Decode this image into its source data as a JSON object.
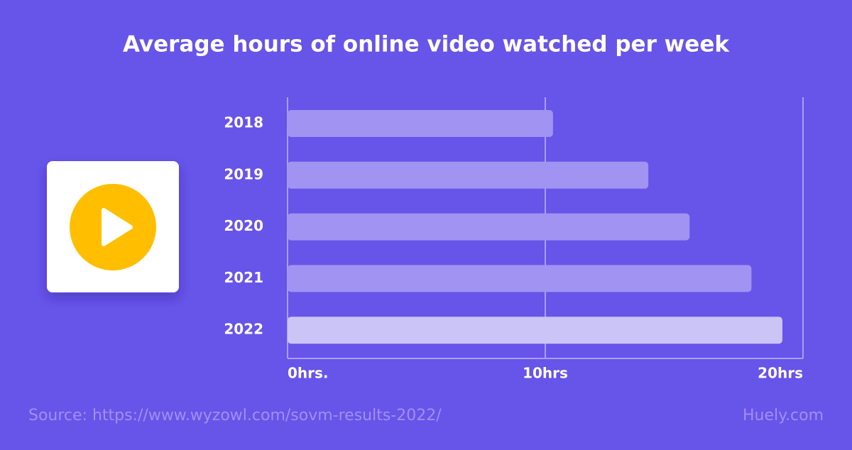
{
  "chart_data": {
    "type": "bar",
    "orientation": "horizontal",
    "title": "Average hours of online video watched per week",
    "categories": [
      "2018",
      "2019",
      "2020",
      "2021",
      "2022"
    ],
    "values": [
      10.3,
      14,
      15.6,
      18,
      19.2
    ],
    "colors": [
      "#a193f2",
      "#a193f2",
      "#a193f2",
      "#a193f2",
      "#cbc4f7"
    ],
    "xlim": [
      0,
      20
    ],
    "xticks": [
      {
        "value": 0,
        "label": "0hrs."
      },
      {
        "value": 10,
        "label": "10hrs"
      },
      {
        "value": 20,
        "label": "20hrs"
      }
    ],
    "grid": true,
    "source": "Source: https://www.wyzowl.com/sovm-results-2022/",
    "brand": "Huely.com"
  }
}
